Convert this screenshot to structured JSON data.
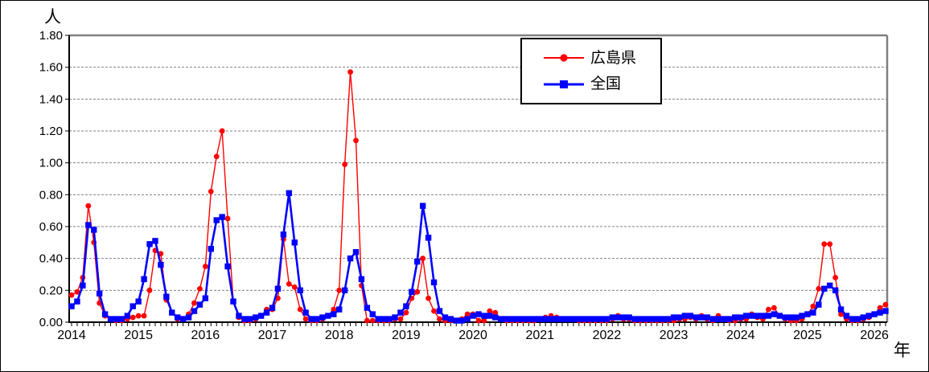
{
  "page": {
    "background": "#ffffff",
    "frame_border_color": "#000000"
  },
  "labels": {
    "y_unit": "人",
    "x_unit": "年"
  },
  "chart_data": {
    "type": "line",
    "title": "",
    "ylabel": "人",
    "xlabel": "年",
    "x_unit": "month",
    "x_start": "2014-01",
    "x_end": "2026-03",
    "ylim": [
      0,
      1.8
    ],
    "ytick_step": 0.2,
    "ytick_labels": [
      "0.00",
      "0.20",
      "0.40",
      "0.60",
      "0.80",
      "1.00",
      "1.20",
      "1.40",
      "1.60",
      "1.80"
    ],
    "year_labels": [
      "2014",
      "2015",
      "2016",
      "2017",
      "2018",
      "2019",
      "2020",
      "2021",
      "2022",
      "2023",
      "2024",
      "2025",
      "2026"
    ],
    "grid": "horizontal-dashed",
    "grid_color": "#808080",
    "plot_border_color": "#808080",
    "axis_color": "#000000",
    "legend_position": "top-center",
    "series": [
      {
        "name": "広島県",
        "color": "#ff0000",
        "marker": "circle",
        "line_width": 1.4,
        "values": [
          0.17,
          0.19,
          0.28,
          0.73,
          0.5,
          0.12,
          0.04,
          0.02,
          0.01,
          0.01,
          0.02,
          0.03,
          0.04,
          0.04,
          0.2,
          0.45,
          0.43,
          0.14,
          0.06,
          0.02,
          0.02,
          0.05,
          0.12,
          0.21,
          0.35,
          0.82,
          1.04,
          1.2,
          0.65,
          0.13,
          0.03,
          0.01,
          0.01,
          0.02,
          0.04,
          0.08,
          0.08,
          0.15,
          0.52,
          0.24,
          0.22,
          0.08,
          0.02,
          0.01,
          0.01,
          0.02,
          0.04,
          0.08,
          0.2,
          0.99,
          1.57,
          1.14,
          0.23,
          0.01,
          0.01,
          0.01,
          0.01,
          0.01,
          0.02,
          0.02,
          0.06,
          0.15,
          0.19,
          0.4,
          0.15,
          0.07,
          0.02,
          0.01,
          0.01,
          0.01,
          0.02,
          0.05,
          0.05,
          0.01,
          0.01,
          0.07,
          0.06,
          0.02,
          0.01,
          0.01,
          0.01,
          0.01,
          0.01,
          0.01,
          0.02,
          0.03,
          0.04,
          0.03,
          0.02,
          0.02,
          0.02,
          0.01,
          0.01,
          0.01,
          0.01,
          0.01,
          0.01,
          0.02,
          0.04,
          0.02,
          0.02,
          0.01,
          0.01,
          0.01,
          0.01,
          0.01,
          0.01,
          0.01,
          0.01,
          0.02,
          0.02,
          0.03,
          0.02,
          0.04,
          0.02,
          0.01,
          0.04,
          0.02,
          0.01,
          0.01,
          0.02,
          0.02,
          0.05,
          0.03,
          0.02,
          0.08,
          0.09,
          0.04,
          0.02,
          0.01,
          0.01,
          0.02,
          0.05,
          0.1,
          0.21,
          0.49,
          0.49,
          0.28,
          0.05,
          0.02,
          0.01,
          0.01,
          0.02,
          0.03,
          0.05,
          0.09,
          0.11
        ]
      },
      {
        "name": "全国",
        "color": "#0000ff",
        "marker": "square",
        "line_width": 2.6,
        "values": [
          0.1,
          0.13,
          0.23,
          0.61,
          0.58,
          0.18,
          0.05,
          0.02,
          0.02,
          0.02,
          0.04,
          0.1,
          0.13,
          0.27,
          0.49,
          0.51,
          0.36,
          0.16,
          0.06,
          0.03,
          0.02,
          0.03,
          0.07,
          0.11,
          0.15,
          0.46,
          0.64,
          0.66,
          0.35,
          0.13,
          0.04,
          0.02,
          0.02,
          0.03,
          0.04,
          0.06,
          0.09,
          0.21,
          0.55,
          0.81,
          0.5,
          0.2,
          0.06,
          0.02,
          0.02,
          0.03,
          0.04,
          0.05,
          0.08,
          0.2,
          0.4,
          0.44,
          0.27,
          0.09,
          0.05,
          0.02,
          0.02,
          0.02,
          0.03,
          0.06,
          0.1,
          0.19,
          0.38,
          0.73,
          0.53,
          0.25,
          0.07,
          0.03,
          0.02,
          0.01,
          0.01,
          0.02,
          0.04,
          0.05,
          0.04,
          0.04,
          0.03,
          0.02,
          0.02,
          0.02,
          0.02,
          0.02,
          0.02,
          0.02,
          0.02,
          0.02,
          0.02,
          0.02,
          0.02,
          0.02,
          0.02,
          0.02,
          0.02,
          0.02,
          0.02,
          0.02,
          0.02,
          0.03,
          0.03,
          0.03,
          0.03,
          0.02,
          0.02,
          0.02,
          0.02,
          0.02,
          0.02,
          0.02,
          0.03,
          0.03,
          0.04,
          0.04,
          0.03,
          0.03,
          0.03,
          0.02,
          0.02,
          0.02,
          0.02,
          0.03,
          0.03,
          0.04,
          0.04,
          0.04,
          0.04,
          0.04,
          0.05,
          0.04,
          0.03,
          0.03,
          0.03,
          0.04,
          0.05,
          0.06,
          0.11,
          0.21,
          0.23,
          0.2,
          0.08,
          0.04,
          0.02,
          0.02,
          0.03,
          0.04,
          0.05,
          0.06,
          0.07
        ]
      }
    ]
  }
}
